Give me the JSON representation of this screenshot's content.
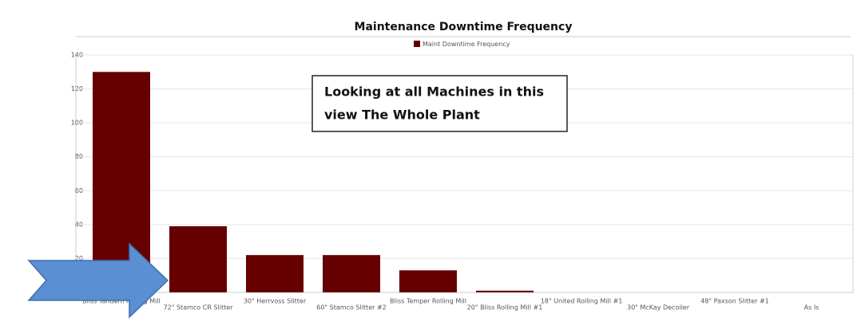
{
  "chart_data": {
    "type": "bar",
    "title": "Maintenance Downtime Frequency",
    "categories": [
      "Bliss Tandem Rolling Mill",
      "72\" Stamco CR Slitter",
      "30\" Herrvoss Slitter",
      "60\" Stamco Slitter #2",
      "Bliss Temper Rolling Mill",
      "20\" Bliss Rolling Mill #1",
      "18\" United Rolling Mill #1",
      "30\" McKay Decoiler",
      "48\" Paxson Slitter #1",
      "As Is"
    ],
    "series": [
      {
        "name": "Maint Downtime Frequency",
        "color": "#660000",
        "values": [
          130,
          39,
          22,
          22,
          13,
          1,
          0,
          0,
          0,
          0
        ]
      }
    ],
    "ylim": [
      0,
      140
    ],
    "yticks": [
      20,
      40,
      60,
      80,
      100,
      120,
      140
    ],
    "grid": true,
    "annotations": [
      "Looking at all Machines in this",
      "view   The Whole Plant"
    ]
  }
}
